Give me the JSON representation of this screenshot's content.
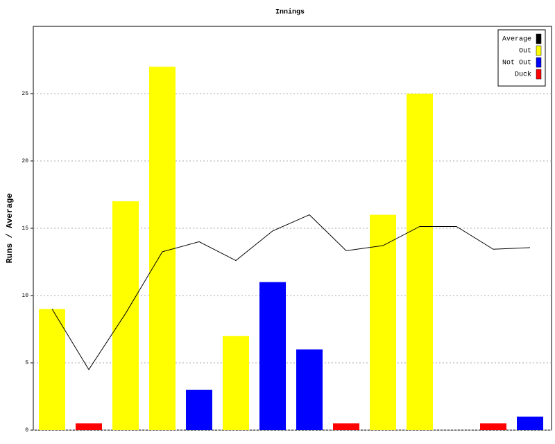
{
  "chart_data": {
    "type": "bar",
    "title": "Innings",
    "y_label": "Runs / Average",
    "categories": [
      null,
      null,
      null,
      null,
      null,
      null,
      null,
      null,
      null,
      null,
      null,
      null,
      null,
      null
    ],
    "series": [
      {
        "name": "Average",
        "color": "#000000",
        "type": "line",
        "values": [
          9,
          4.5,
          8.67,
          13.25,
          14,
          12.6,
          14.8,
          16,
          13.33,
          13.71,
          15.13,
          15.13,
          13.44,
          13.56
        ]
      },
      {
        "name": "Out",
        "color": "#ffff00",
        "values": [
          9,
          null,
          17,
          27,
          null,
          7,
          null,
          null,
          null,
          16,
          25,
          null,
          null,
          null
        ]
      },
      {
        "name": "Not Out",
        "color": "#0000ff",
        "values": [
          null,
          null,
          null,
          null,
          3,
          null,
          11,
          6,
          null,
          null,
          null,
          0,
          null,
          1
        ]
      },
      {
        "name": "Duck",
        "color": "#ff0000",
        "values": [
          null,
          0.5,
          null,
          null,
          null,
          null,
          null,
          null,
          0.5,
          null,
          null,
          null,
          0.5,
          null
        ]
      }
    ],
    "ylim": [
      0,
      30
    ],
    "yticks": [
      0,
      5,
      10,
      15,
      20,
      25
    ],
    "grid": true
  }
}
